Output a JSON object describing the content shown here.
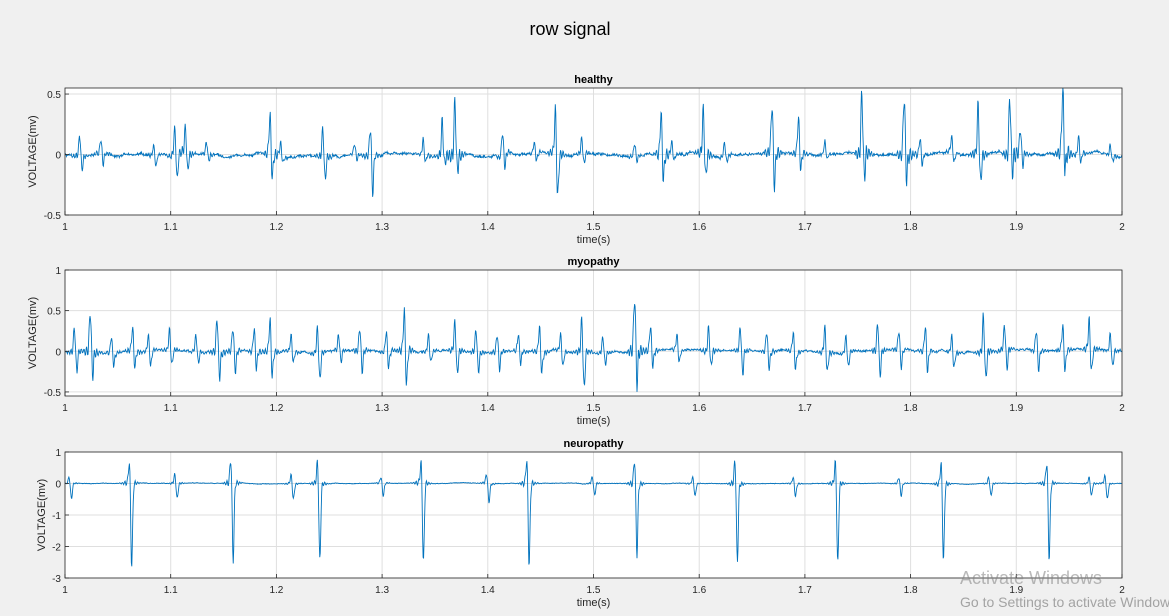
{
  "figure": {
    "title": "row signal",
    "watermark_line1": "Activate Windows",
    "watermark_line2": "Go to Settings to activate Windows."
  },
  "chart_data": [
    {
      "type": "line",
      "title": "healthy",
      "xlabel": "time(s)",
      "ylabel": "VOLTAGE(mv)",
      "xlim": [
        1,
        2
      ],
      "ylim": [
        -0.5,
        0.55
      ],
      "xticks": [
        1,
        1.1,
        1.2,
        1.3,
        1.4,
        1.5,
        1.6,
        1.7,
        1.8,
        1.9,
        2
      ],
      "xtick_labels": [
        "1",
        "1.1",
        "1.2",
        "1.3",
        "1.4",
        "1.5",
        "1.6",
        "1.7",
        "1.8",
        "1.9",
        "2"
      ],
      "yticks": [
        -0.5,
        0,
        0.5
      ],
      "ytick_labels": [
        "-0.5",
        "0",
        "0.5"
      ],
      "grid": true,
      "color": "#0072bd",
      "baseline": 0,
      "noise": 0.018,
      "events": [
        [
          1.015,
          0.18,
          -0.12
        ],
        [
          1.035,
          0.14,
          -0.08
        ],
        [
          1.085,
          0.08,
          -0.1
        ],
        [
          1.105,
          0.22,
          -0.22
        ],
        [
          1.115,
          0.22,
          -0.15
        ],
        [
          1.135,
          0.1,
          -0.05
        ],
        [
          1.195,
          0.33,
          -0.2
        ],
        [
          1.205,
          0.1,
          -0.05
        ],
        [
          1.245,
          0.24,
          -0.2
        ],
        [
          1.275,
          0.08,
          -0.05
        ],
        [
          1.29,
          0.24,
          -0.32
        ],
        [
          1.34,
          0.12,
          -0.06
        ],
        [
          1.358,
          0.3,
          -0.08
        ],
        [
          1.37,
          0.45,
          -0.15
        ],
        [
          1.415,
          0.2,
          -0.1
        ],
        [
          1.445,
          0.1,
          -0.05
        ],
        [
          1.465,
          0.35,
          -0.38
        ],
        [
          1.49,
          0.12,
          -0.08
        ],
        [
          1.54,
          0.1,
          -0.05
        ],
        [
          1.565,
          0.36,
          -0.2
        ],
        [
          1.575,
          0.1,
          -0.05
        ],
        [
          1.605,
          0.38,
          -0.2
        ],
        [
          1.625,
          0.12,
          -0.06
        ],
        [
          1.67,
          0.4,
          -0.28
        ],
        [
          1.695,
          0.28,
          -0.15
        ],
        [
          1.72,
          0.1,
          -0.05
        ],
        [
          1.755,
          0.52,
          -0.2
        ],
        [
          1.795,
          0.5,
          -0.2
        ],
        [
          1.81,
          0.14,
          -0.08
        ],
        [
          1.84,
          0.12,
          -0.08
        ],
        [
          1.865,
          0.42,
          -0.25
        ],
        [
          1.895,
          0.5,
          -0.15
        ],
        [
          1.905,
          0.2,
          -0.1
        ],
        [
          1.945,
          0.55,
          -0.15
        ],
        [
          1.96,
          0.14,
          -0.08
        ],
        [
          1.99,
          0.08,
          -0.05
        ]
      ],
      "seed": 7
    },
    {
      "type": "line",
      "title": "myopathy",
      "xlabel": "time(s)",
      "ylabel": "VOLTAGE(mv)",
      "xlim": [
        1,
        2
      ],
      "ylim": [
        -0.55,
        1
      ],
      "xticks": [
        1,
        1.1,
        1.2,
        1.3,
        1.4,
        1.5,
        1.6,
        1.7,
        1.8,
        1.9,
        2
      ],
      "xtick_labels": [
        "1",
        "1.1",
        "1.2",
        "1.3",
        "1.4",
        "1.5",
        "1.6",
        "1.7",
        "1.8",
        "1.9",
        "2"
      ],
      "yticks": [
        -0.5,
        0,
        0.5,
        1
      ],
      "ytick_labels": [
        "-0.5",
        "0",
        "0.5",
        "1"
      ],
      "grid": true,
      "color": "#0072bd",
      "baseline": 0,
      "noise": 0.02,
      "events": [
        [
          1.01,
          0.3,
          -0.25
        ],
        [
          1.025,
          0.52,
          -0.3
        ],
        [
          1.045,
          0.2,
          -0.15
        ],
        [
          1.065,
          0.3,
          -0.2
        ],
        [
          1.08,
          0.2,
          -0.2
        ],
        [
          1.1,
          0.25,
          -0.2
        ],
        [
          1.125,
          0.2,
          -0.15
        ],
        [
          1.145,
          0.45,
          -0.3
        ],
        [
          1.16,
          0.3,
          -0.25
        ],
        [
          1.18,
          0.3,
          -0.2
        ],
        [
          1.195,
          0.4,
          -0.3
        ],
        [
          1.215,
          0.2,
          -0.15
        ],
        [
          1.24,
          0.3,
          -0.35
        ],
        [
          1.26,
          0.2,
          -0.15
        ],
        [
          1.28,
          0.3,
          -0.25
        ],
        [
          1.305,
          0.25,
          -0.2
        ],
        [
          1.322,
          0.48,
          -0.42
        ],
        [
          1.345,
          0.2,
          -0.15
        ],
        [
          1.37,
          0.35,
          -0.3
        ],
        [
          1.39,
          0.28,
          -0.25
        ],
        [
          1.41,
          0.25,
          -0.2
        ],
        [
          1.43,
          0.2,
          -0.15
        ],
        [
          1.45,
          0.3,
          -0.25
        ],
        [
          1.47,
          0.2,
          -0.2
        ],
        [
          1.49,
          0.4,
          -0.48
        ],
        [
          1.51,
          0.2,
          -0.15
        ],
        [
          1.54,
          0.7,
          -0.4
        ],
        [
          1.555,
          0.3,
          -0.2
        ],
        [
          1.58,
          0.2,
          -0.15
        ],
        [
          1.61,
          0.3,
          -0.2
        ],
        [
          1.64,
          0.3,
          -0.3
        ],
        [
          1.665,
          0.25,
          -0.2
        ],
        [
          1.69,
          0.25,
          -0.2
        ],
        [
          1.72,
          0.3,
          -0.25
        ],
        [
          1.74,
          0.2,
          -0.2
        ],
        [
          1.77,
          0.35,
          -0.3
        ],
        [
          1.79,
          0.25,
          -0.2
        ],
        [
          1.815,
          0.3,
          -0.25
        ],
        [
          1.84,
          0.2,
          -0.2
        ],
        [
          1.87,
          0.45,
          -0.35
        ],
        [
          1.89,
          0.3,
          -0.25
        ],
        [
          1.92,
          0.25,
          -0.25
        ],
        [
          1.945,
          0.3,
          -0.25
        ],
        [
          1.97,
          0.35,
          -0.3
        ],
        [
          1.99,
          0.2,
          -0.2
        ]
      ],
      "seed": 21
    },
    {
      "type": "line",
      "title": "neuropathy",
      "xlabel": "time(s)",
      "ylabel": "VOLTAGE(mv)",
      "xlim": [
        1,
        2
      ],
      "ylim": [
        -3,
        1
      ],
      "xticks": [
        1,
        1.1,
        1.2,
        1.3,
        1.4,
        1.5,
        1.6,
        1.7,
        1.8,
        1.9,
        2
      ],
      "xtick_labels": [
        "1",
        "1.1",
        "1.2",
        "1.3",
        "1.4",
        "1.5",
        "1.6",
        "1.7",
        "1.8",
        "1.9",
        "2"
      ],
      "yticks": [
        -3,
        -2,
        -1,
        0,
        1
      ],
      "ytick_labels": [
        "-3",
        "-2",
        "-1",
        "0",
        "1"
      ],
      "grid": true,
      "color": "#0072bd",
      "baseline": 0,
      "noise": 0.015,
      "events": [
        [
          1.005,
          0.2,
          -0.5
        ],
        [
          1.062,
          0.72,
          -2.65
        ],
        [
          1.105,
          0.3,
          -0.5
        ],
        [
          1.158,
          0.82,
          -2.45
        ],
        [
          1.215,
          0.3,
          -0.5
        ],
        [
          1.24,
          0.72,
          -2.5
        ],
        [
          1.3,
          0.2,
          -0.4
        ],
        [
          1.338,
          0.72,
          -2.55
        ],
        [
          1.4,
          0.3,
          -0.6
        ],
        [
          1.438,
          0.82,
          -2.6
        ],
        [
          1.5,
          0.2,
          -0.4
        ],
        [
          1.54,
          0.85,
          -2.25
        ],
        [
          1.595,
          0.2,
          -0.4
        ],
        [
          1.635,
          0.78,
          -2.5
        ],
        [
          1.69,
          0.2,
          -0.4
        ],
        [
          1.73,
          0.72,
          -2.6
        ],
        [
          1.79,
          0.2,
          -0.4
        ],
        [
          1.83,
          0.72,
          -2.45
        ],
        [
          1.875,
          0.2,
          -0.4
        ],
        [
          1.93,
          0.72,
          -2.4
        ],
        [
          1.97,
          0.2,
          -0.4
        ],
        [
          1.985,
          0.25,
          -0.5
        ]
      ],
      "seed": 42
    }
  ]
}
